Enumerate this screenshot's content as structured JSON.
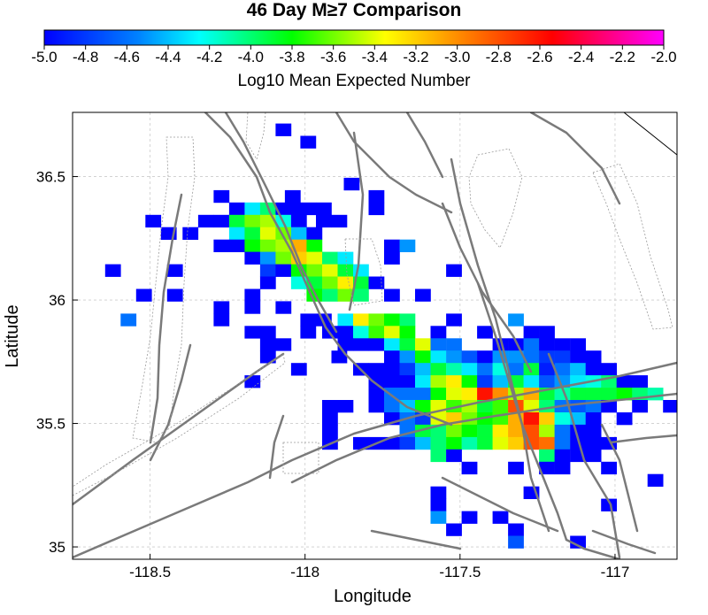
{
  "chart_data": {
    "type": "heatmap",
    "title": "46 Day M≥7 Comparison",
    "xlabel": "Longitude",
    "ylabel": "Latitude",
    "colorbar": {
      "label": "Log10 Mean Expected Number",
      "range": [
        -5.0,
        -2.0
      ],
      "ticks": [
        "-5.0",
        "-4.8",
        "-4.6",
        "-4.4",
        "-4.2",
        "-4.0",
        "-3.8",
        "-3.6",
        "-3.4",
        "-3.2",
        "-3.0",
        "-2.8",
        "-2.6",
        "-2.4",
        "-2.2",
        "-2.0"
      ],
      "tick_values": [
        -5.0,
        -4.8,
        -4.6,
        -4.4,
        -4.2,
        -4.0,
        -3.8,
        -3.6,
        -3.4,
        -3.2,
        -3.0,
        -2.8,
        -2.6,
        -2.4,
        -2.2,
        -2.0
      ],
      "palette": "rainbow (blue-cyan-green-yellow-orange-red-magenta)"
    },
    "xlim": [
      -118.75,
      -116.8
    ],
    "ylim": [
      34.95,
      36.76
    ],
    "xticks": [
      -118.5,
      -118,
      -117.5,
      -117
    ],
    "xtick_labels": [
      "-118.5",
      "-118",
      "-117.5",
      "-117"
    ],
    "yticks": [
      35,
      35.5,
      36,
      36.5
    ],
    "ytick_labels": [
      "35",
      "35.5",
      "36",
      "36.5"
    ],
    "grid": true,
    "cell_size_deg": 0.05,
    "cells": [
      [
        -118.07,
        36.69,
        -5.0
      ],
      [
        -117.99,
        36.64,
        -5.0
      ],
      [
        -117.85,
        36.47,
        -5.0
      ],
      [
        -117.77,
        36.42,
        -5.0
      ],
      [
        -118.04,
        36.42,
        -5.0
      ],
      [
        -117.99,
        36.37,
        -5.0
      ],
      [
        -118.27,
        36.42,
        -5.0
      ],
      [
        -118.22,
        36.37,
        -5.0
      ],
      [
        -118.17,
        36.37,
        -4.3
      ],
      [
        -118.12,
        36.37,
        -4.0
      ],
      [
        -118.07,
        36.37,
        -5.0
      ],
      [
        -117.94,
        36.37,
        -5.0
      ],
      [
        -117.77,
        36.37,
        -5.0
      ],
      [
        -118.04,
        36.37,
        -5.0
      ],
      [
        -118.32,
        36.32,
        -5.0
      ],
      [
        -118.27,
        36.32,
        -5.0
      ],
      [
        -118.22,
        36.32,
        -3.9
      ],
      [
        -118.17,
        36.32,
        -3.6
      ],
      [
        -118.12,
        36.32,
        -3.5
      ],
      [
        -118.07,
        36.32,
        -4.2
      ],
      [
        -118.02,
        36.32,
        -5.0
      ],
      [
        -117.94,
        36.32,
        -5.0
      ],
      [
        -117.89,
        36.32,
        -5.0
      ],
      [
        -118.49,
        36.32,
        -5.0
      ],
      [
        -118.44,
        36.27,
        -5.0
      ],
      [
        -118.37,
        36.27,
        -5.0
      ],
      [
        -118.22,
        36.27,
        -4.3
      ],
      [
        -118.17,
        36.27,
        -3.9
      ],
      [
        -118.12,
        36.27,
        -3.4
      ],
      [
        -118.07,
        36.27,
        -3.6
      ],
      [
        -118.02,
        36.27,
        -4.4
      ],
      [
        -117.97,
        36.27,
        -5.0
      ],
      [
        -118.27,
        36.22,
        -5.0
      ],
      [
        -118.22,
        36.22,
        -5.0
      ],
      [
        -118.17,
        36.22,
        -3.8
      ],
      [
        -118.12,
        36.22,
        -3.6
      ],
      [
        -118.07,
        36.22,
        -3.5
      ],
      [
        -118.02,
        36.22,
        -3.1
      ],
      [
        -117.97,
        36.22,
        -3.8
      ],
      [
        -117.72,
        36.22,
        -5.0
      ],
      [
        -117.67,
        36.22,
        -4.5
      ],
      [
        -118.62,
        36.12,
        -5.0
      ],
      [
        -118.42,
        36.12,
        -5.0
      ],
      [
        -118.17,
        36.17,
        -5.0
      ],
      [
        -118.12,
        36.17,
        -4.5
      ],
      [
        -118.07,
        36.17,
        -3.6
      ],
      [
        -118.02,
        36.17,
        -3.2
      ],
      [
        -117.97,
        36.17,
        -3.4
      ],
      [
        -117.92,
        36.17,
        -4.0
      ],
      [
        -117.87,
        36.17,
        -4.3
      ],
      [
        -117.72,
        36.17,
        -5.0
      ],
      [
        -117.52,
        36.12,
        -5.0
      ],
      [
        -118.12,
        36.12,
        -4.8
      ],
      [
        -118.07,
        36.12,
        -5.0
      ],
      [
        -118.02,
        36.12,
        -3.8
      ],
      [
        -117.97,
        36.12,
        -3.6
      ],
      [
        -117.92,
        36.12,
        -3.4
      ],
      [
        -117.87,
        36.12,
        -3.9
      ],
      [
        -117.82,
        36.12,
        -4.3
      ],
      [
        -118.52,
        36.02,
        -5.0
      ],
      [
        -118.42,
        36.02,
        -5.0
      ],
      [
        -118.17,
        36.02,
        -5.0
      ],
      [
        -118.02,
        36.07,
        -4.2
      ],
      [
        -117.97,
        36.07,
        -3.9
      ],
      [
        -117.92,
        36.07,
        -3.6
      ],
      [
        -117.87,
        36.07,
        -3.3
      ],
      [
        -117.82,
        36.07,
        -3.9
      ],
      [
        -117.77,
        36.07,
        -5.0
      ],
      [
        -118.12,
        36.07,
        -5.0
      ],
      [
        -118.27,
        35.97,
        -5.0
      ],
      [
        -118.17,
        35.97,
        -5.0
      ],
      [
        -118.07,
        35.97,
        -5.0
      ],
      [
        -117.97,
        36.02,
        -3.8
      ],
      [
        -117.92,
        36.02,
        -4.0
      ],
      [
        -117.87,
        36.02,
        -3.6
      ],
      [
        -117.82,
        36.02,
        -4.0
      ],
      [
        -117.72,
        36.02,
        -5.0
      ],
      [
        -117.62,
        36.02,
        -5.0
      ],
      [
        -118.57,
        35.92,
        -4.6
      ],
      [
        -118.27,
        35.92,
        -5.0
      ],
      [
        -117.99,
        35.92,
        -5.0
      ],
      [
        -117.94,
        35.92,
        -5.0
      ],
      [
        -117.87,
        35.92,
        -4.3
      ],
      [
        -117.82,
        35.92,
        -3.3
      ],
      [
        -117.77,
        35.92,
        -3.6
      ],
      [
        -117.72,
        35.92,
        -3.8
      ],
      [
        -117.67,
        35.92,
        -4.0
      ],
      [
        -117.52,
        35.92,
        -5.0
      ],
      [
        -117.32,
        35.92,
        -4.5
      ],
      [
        -118.17,
        35.87,
        -5.0
      ],
      [
        -118.12,
        35.87,
        -5.0
      ],
      [
        -117.99,
        35.87,
        -5.0
      ],
      [
        -117.92,
        35.87,
        -5.0
      ],
      [
        -117.87,
        35.87,
        -5.0
      ],
      [
        -117.82,
        35.87,
        -4.2
      ],
      [
        -117.77,
        35.87,
        -3.7
      ],
      [
        -117.72,
        35.87,
        -3.4
      ],
      [
        -117.67,
        35.87,
        -3.8
      ],
      [
        -117.57,
        35.87,
        -5.0
      ],
      [
        -117.42,
        35.87,
        -5.0
      ],
      [
        -117.27,
        35.87,
        -5.0
      ],
      [
        -117.22,
        35.87,
        -5.0
      ],
      [
        -118.12,
        35.82,
        -5.0
      ],
      [
        -118.07,
        35.82,
        -5.0
      ],
      [
        -117.87,
        35.82,
        -5.0
      ],
      [
        -117.82,
        35.82,
        -5.0
      ],
      [
        -117.77,
        35.82,
        -5.0
      ],
      [
        -117.72,
        35.82,
        -4.3
      ],
      [
        -117.67,
        35.82,
        -3.9
      ],
      [
        -117.62,
        35.82,
        -3.4
      ],
      [
        -117.57,
        35.82,
        -4.6
      ],
      [
        -117.52,
        35.82,
        -4.6
      ],
      [
        -117.37,
        35.82,
        -5.0
      ],
      [
        -117.32,
        35.82,
        -5.0
      ],
      [
        -117.27,
        35.82,
        -4.6
      ],
      [
        -117.22,
        35.82,
        -5.0
      ],
      [
        -117.17,
        35.82,
        -5.0
      ],
      [
        -117.12,
        35.82,
        -5.0
      ],
      [
        -118.12,
        35.77,
        -5.0
      ],
      [
        -117.89,
        35.77,
        -5.0
      ],
      [
        -117.72,
        35.77,
        -5.0
      ],
      [
        -117.67,
        35.77,
        -4.5
      ],
      [
        -117.62,
        35.77,
        -3.8
      ],
      [
        -117.57,
        35.77,
        -4.3
      ],
      [
        -117.52,
        35.77,
        -4.5
      ],
      [
        -117.47,
        35.77,
        -4.7
      ],
      [
        -117.42,
        35.77,
        -5.0
      ],
      [
        -117.37,
        35.77,
        -4.5
      ],
      [
        -117.32,
        35.77,
        -4.5
      ],
      [
        -117.27,
        35.77,
        -4.6
      ],
      [
        -117.22,
        35.77,
        -4.8
      ],
      [
        -117.17,
        35.77,
        -4.8
      ],
      [
        -117.12,
        35.77,
        -5.0
      ],
      [
        -117.07,
        35.77,
        -5.0
      ],
      [
        -118.17,
        35.67,
        -5.0
      ],
      [
        -118.02,
        35.72,
        -5.0
      ],
      [
        -117.82,
        35.72,
        -5.0
      ],
      [
        -117.77,
        35.72,
        -5.0
      ],
      [
        -117.72,
        35.72,
        -5.0
      ],
      [
        -117.67,
        35.72,
        -4.8
      ],
      [
        -117.62,
        35.72,
        -4.4
      ],
      [
        -117.57,
        35.72,
        -3.9
      ],
      [
        -117.52,
        35.72,
        -4.1
      ],
      [
        -117.47,
        35.72,
        -4.3
      ],
      [
        -117.42,
        35.72,
        -4.6
      ],
      [
        -117.37,
        35.72,
        -4.2
      ],
      [
        -117.32,
        35.72,
        -4.6
      ],
      [
        -117.27,
        35.72,
        -3.9
      ],
      [
        -117.22,
        35.72,
        -4.9
      ],
      [
        -117.17,
        35.72,
        -4.6
      ],
      [
        -117.12,
        35.72,
        -4.4
      ],
      [
        -117.07,
        35.72,
        -5.0
      ],
      [
        -117.02,
        35.72,
        -5.0
      ],
      [
        -117.77,
        35.67,
        -5.0
      ],
      [
        -117.72,
        35.67,
        -5.0
      ],
      [
        -117.67,
        35.67,
        -5.0
      ],
      [
        -117.62,
        35.67,
        -4.3
      ],
      [
        -117.57,
        35.67,
        -3.5
      ],
      [
        -117.52,
        35.67,
        -3.3
      ],
      [
        -117.47,
        35.67,
        -3.8
      ],
      [
        -117.42,
        35.67,
        -4.8
      ],
      [
        -117.37,
        35.67,
        -4.4
      ],
      [
        -117.32,
        35.67,
        -3.9
      ],
      [
        -117.27,
        35.67,
        -4.3
      ],
      [
        -117.22,
        35.67,
        -4.7
      ],
      [
        -117.17,
        35.67,
        -4.5
      ],
      [
        -117.12,
        35.67,
        -4.3
      ],
      [
        -117.07,
        35.67,
        -4.2
      ],
      [
        -117.02,
        35.67,
        -4.0
      ],
      [
        -116.97,
        35.67,
        -5.0
      ],
      [
        -116.92,
        35.67,
        -5.0
      ],
      [
        -117.77,
        35.62,
        -5.0
      ],
      [
        -117.72,
        35.62,
        -4.6
      ],
      [
        -117.67,
        35.62,
        -4.6
      ],
      [
        -117.62,
        35.62,
        -4.6
      ],
      [
        -117.57,
        35.62,
        -3.8
      ],
      [
        -117.52,
        35.62,
        -3.4
      ],
      [
        -117.47,
        35.62,
        -3.3
      ],
      [
        -117.42,
        35.62,
        -2.6
      ],
      [
        -117.37,
        35.62,
        -3.0
      ],
      [
        -117.32,
        35.62,
        -3.5
      ],
      [
        -117.27,
        35.62,
        -3.1
      ],
      [
        -117.22,
        35.62,
        -3.9
      ],
      [
        -117.17,
        35.62,
        -4.1
      ],
      [
        -117.12,
        35.62,
        -3.9
      ],
      [
        -117.07,
        35.62,
        -3.9
      ],
      [
        -117.02,
        35.62,
        -3.9
      ],
      [
        -116.97,
        35.62,
        -3.8
      ],
      [
        -116.92,
        35.62,
        -4.0
      ],
      [
        -116.87,
        35.62,
        -4.1
      ],
      [
        -117.92,
        35.57,
        -5.0
      ],
      [
        -117.87,
        35.57,
        -5.0
      ],
      [
        -117.77,
        35.57,
        -5.0
      ],
      [
        -117.72,
        35.57,
        -4.6
      ],
      [
        -117.67,
        35.57,
        -4.4
      ],
      [
        -117.62,
        35.57,
        -3.8
      ],
      [
        -117.57,
        35.57,
        -3.4
      ],
      [
        -117.52,
        35.57,
        -3.7
      ],
      [
        -117.47,
        35.57,
        -3.5
      ],
      [
        -117.42,
        35.57,
        -3.9
      ],
      [
        -117.37,
        35.57,
        -3.7
      ],
      [
        -117.32,
        35.57,
        -2.8
      ],
      [
        -117.27,
        35.57,
        -3.4
      ],
      [
        -117.22,
        35.57,
        -4.0
      ],
      [
        -117.17,
        35.57,
        -4.6
      ],
      [
        -117.12,
        35.57,
        -4.7
      ],
      [
        -117.07,
        35.57,
        -4.6
      ],
      [
        -117.02,
        35.57,
        -5.0
      ],
      [
        -116.92,
        35.57,
        -5.0
      ],
      [
        -116.82,
        35.57,
        -5.0
      ],
      [
        -117.92,
        35.52,
        -5.0
      ],
      [
        -117.72,
        35.52,
        -5.0
      ],
      [
        -117.67,
        35.52,
        -4.6
      ],
      [
        -117.62,
        35.52,
        -4.8
      ],
      [
        -117.57,
        35.52,
        -3.4
      ],
      [
        -117.52,
        35.52,
        -3.2
      ],
      [
        -117.47,
        35.52,
        -3.6
      ],
      [
        -117.42,
        35.52,
        -3.8
      ],
      [
        -117.37,
        35.52,
        -3.7
      ],
      [
        -117.32,
        35.52,
        -3.1
      ],
      [
        -117.27,
        35.52,
        -2.6
      ],
      [
        -117.22,
        35.52,
        -3.2
      ],
      [
        -117.17,
        35.52,
        -4.2
      ],
      [
        -117.12,
        35.52,
        -4.4
      ],
      [
        -117.07,
        35.52,
        -5.0
      ],
      [
        -116.97,
        35.52,
        -5.0
      ],
      [
        -117.92,
        35.47,
        -5.0
      ],
      [
        -117.67,
        35.47,
        -4.6
      ],
      [
        -117.62,
        35.47,
        -3.9
      ],
      [
        -117.57,
        35.47,
        -4.0
      ],
      [
        -117.52,
        35.47,
        -3.6
      ],
      [
        -117.47,
        35.47,
        -3.8
      ],
      [
        -117.42,
        35.47,
        -3.9
      ],
      [
        -117.37,
        35.47,
        -3.3
      ],
      [
        -117.32,
        35.47,
        -3.1
      ],
      [
        -117.27,
        35.47,
        -2.8
      ],
      [
        -117.22,
        35.47,
        -3.5
      ],
      [
        -117.17,
        35.47,
        -4.6
      ],
      [
        -117.12,
        35.47,
        -5.0
      ],
      [
        -117.07,
        35.47,
        -5.0
      ],
      [
        -117.92,
        35.42,
        -5.0
      ],
      [
        -117.82,
        35.42,
        -5.0
      ],
      [
        -117.77,
        35.42,
        -5.0
      ],
      [
        -117.72,
        35.42,
        -5.0
      ],
      [
        -117.67,
        35.42,
        -4.8
      ],
      [
        -117.62,
        35.42,
        -4.4
      ],
      [
        -117.57,
        35.42,
        -4.0
      ],
      [
        -117.52,
        35.42,
        -3.8
      ],
      [
        -117.47,
        35.42,
        -4.1
      ],
      [
        -117.42,
        35.42,
        -3.9
      ],
      [
        -117.37,
        35.42,
        -3.4
      ],
      [
        -117.32,
        35.42,
        -3.2
      ],
      [
        -117.27,
        35.42,
        -2.8
      ],
      [
        -117.22,
        35.42,
        -2.9
      ],
      [
        -117.17,
        35.42,
        -4.6
      ],
      [
        -117.12,
        35.42,
        -5.0
      ],
      [
        -117.07,
        35.42,
        -5.0
      ],
      [
        -117.02,
        35.42,
        -5.0
      ],
      [
        -117.57,
        35.37,
        -4.0
      ],
      [
        -117.52,
        35.37,
        -5.0
      ],
      [
        -117.22,
        35.37,
        -4.0
      ],
      [
        -117.17,
        35.37,
        -5.0
      ],
      [
        -117.12,
        35.37,
        -5.0
      ],
      [
        -117.07,
        35.37,
        -5.0
      ],
      [
        -117.47,
        35.32,
        -5.0
      ],
      [
        -117.32,
        35.32,
        -5.0
      ],
      [
        -117.22,
        35.32,
        -5.0
      ],
      [
        -117.17,
        35.32,
        -5.0
      ],
      [
        -117.02,
        35.32,
        -5.0
      ],
      [
        -116.87,
        35.27,
        -5.0
      ],
      [
        -117.57,
        35.22,
        -5.0
      ],
      [
        -117.27,
        35.22,
        -5.0
      ],
      [
        -117.02,
        35.17,
        -5.0
      ],
      [
        -117.57,
        35.17,
        -5.0
      ],
      [
        -117.47,
        35.12,
        -5.0
      ],
      [
        -117.37,
        35.12,
        -5.0
      ],
      [
        -117.57,
        35.12,
        -4.5
      ],
      [
        -117.52,
        35.07,
        -5.0
      ],
      [
        -117.32,
        35.07,
        -5.0
      ],
      [
        -117.12,
        35.02,
        -5.0
      ],
      [
        -117.32,
        35.02,
        -4.7
      ]
    ]
  }
}
